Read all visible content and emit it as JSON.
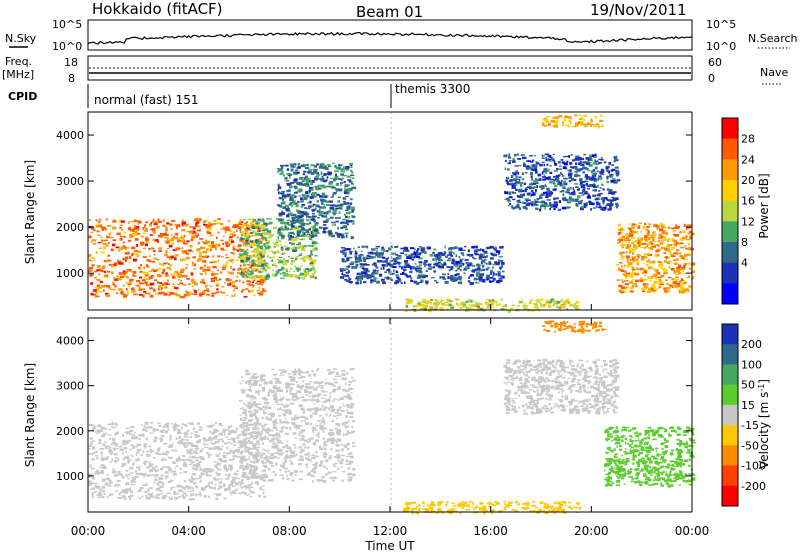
{
  "header": {
    "station": "Hokkaido (fitACF)",
    "beam": "Beam 01",
    "date": "19/Nov/2011"
  },
  "noise_panel": {
    "left_label": "N.Sky",
    "right_label": "N.Search",
    "left_ticks": [
      "10^5",
      "10^0"
    ],
    "right_ticks": [
      "10^5",
      "10^0"
    ]
  },
  "freq_panel": {
    "left_label_1": "Freq.",
    "left_label_2": "[MHz]",
    "right_label": "Nave",
    "left_ticks": [
      "18",
      "8"
    ],
    "right_ticks": [
      "60",
      "0"
    ]
  },
  "cpid_panel": {
    "label": "CPID",
    "programs": [
      {
        "name": "normal (fast) 151",
        "start_hour": 0
      },
      {
        "name": "themis 3300",
        "start_hour": 12
      }
    ]
  },
  "chart_data": [
    {
      "type": "heatmap",
      "panel": "power",
      "ylabel": "Slant Range [km]",
      "xlabel": "",
      "xlim": [
        0,
        24
      ],
      "ylim": [
        200,
        4500
      ],
      "y_ticks": [
        1000,
        2000,
        3000,
        4000
      ],
      "colorbar_label": "Power [dB]",
      "colorbar_ticks": [
        "28",
        "24",
        "20",
        "16",
        "12",
        "8",
        "4"
      ],
      "colorbar_colors": [
        "#ff0000",
        "#ff5a00",
        "#ff9a00",
        "#ffd000",
        "#b8d840",
        "#48a860",
        "#2e6b8a",
        "#1c30b8",
        "#0000ff"
      ],
      "regions": [
        {
          "t0": 0.0,
          "t1": 7.0,
          "r0": 500,
          "r1": 2200,
          "level": 26
        },
        {
          "t0": 6.0,
          "t1": 9.0,
          "r0": 900,
          "r1": 2200,
          "level": 14
        },
        {
          "t0": 7.5,
          "t1": 10.5,
          "r0": 1800,
          "r1": 3400,
          "level": 8
        },
        {
          "t0": 10.0,
          "t1": 16.5,
          "r0": 800,
          "r1": 1600,
          "level": 6
        },
        {
          "t0": 16.5,
          "t1": 21.0,
          "r0": 2400,
          "r1": 3600,
          "level": 6
        },
        {
          "t0": 21.0,
          "t1": 24.0,
          "r0": 600,
          "r1": 2100,
          "level": 24
        },
        {
          "t0": 12.5,
          "t1": 19.5,
          "r0": 200,
          "r1": 450,
          "level": 18
        },
        {
          "t0": 18.0,
          "t1": 20.5,
          "r0": 4200,
          "r1": 4450,
          "level": 22
        }
      ]
    },
    {
      "type": "heatmap",
      "panel": "velocity",
      "ylabel": "Slant Range [km]",
      "xlabel": "Time UT",
      "xlim": [
        0,
        24
      ],
      "ylim": [
        200,
        4500
      ],
      "y_ticks": [
        1000,
        2000,
        3000,
        4000
      ],
      "x_ticks": [
        "00:00",
        "04:00",
        "08:00",
        "12:00",
        "16:00",
        "20:00",
        "00:00"
      ],
      "colorbar_label": "Velocity [m s^-1]",
      "colorbar_ticks": [
        "200",
        "100",
        "50",
        "15",
        "-15",
        "-50",
        "-100",
        "-200"
      ],
      "colorbar_colors": [
        "#1c30b8",
        "#2e6b8a",
        "#48a860",
        "#5ccc30",
        "#c8c8c8",
        "#ffc800",
        "#ff8c00",
        "#ff4000",
        "#ff0000"
      ],
      "regions": [
        {
          "t0": 0.0,
          "t1": 7.0,
          "r0": 500,
          "r1": 2200,
          "level": 0
        },
        {
          "t0": 6.0,
          "t1": 10.5,
          "r0": 900,
          "r1": 3400,
          "level": 0
        },
        {
          "t0": 16.5,
          "t1": 21.0,
          "r0": 2400,
          "r1": 3600,
          "level": 0
        },
        {
          "t0": 20.5,
          "t1": 24.0,
          "r0": 800,
          "r1": 2100,
          "level": 40
        },
        {
          "t0": 12.5,
          "t1": 19.5,
          "r0": 200,
          "r1": 450,
          "level": -40
        },
        {
          "t0": 18.0,
          "t1": 20.5,
          "r0": 4200,
          "r1": 4450,
          "level": -80
        }
      ]
    }
  ]
}
